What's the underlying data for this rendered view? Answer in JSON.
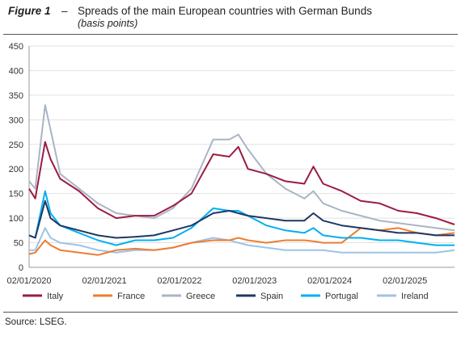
{
  "header": {
    "figure_label": "Figure 1",
    "dash": "–",
    "title": "Spreads of the main European countries with German Bunds",
    "subtitle": "(basis points)"
  },
  "source": "Source: LSEG.",
  "chart_data": {
    "type": "line",
    "title": "Spreads of the main European countries with German Bunds",
    "subtitle": "(basis points)",
    "xlabel": "",
    "ylabel": "",
    "ylim": [
      0,
      450
    ],
    "yticks": [
      0,
      50,
      100,
      150,
      200,
      250,
      300,
      350,
      400,
      450
    ],
    "xlim": [
      "02/01/2020",
      "31/08/2025"
    ],
    "xtick_labels": [
      "02/01/2020",
      "02/01/2021",
      "02/01/2022",
      "02/01/2023",
      "02/01/2024",
      "02/01/2025"
    ],
    "grid": "horizontal",
    "legend_position": "bottom",
    "x": [
      "02/01/2020",
      "01/02/2020",
      "20/03/2020",
      "15/04/2020",
      "01/06/2020",
      "01/09/2020",
      "01/12/2020",
      "01/03/2021",
      "01/06/2021",
      "01/09/2021",
      "01/12/2021",
      "01/03/2022",
      "15/06/2022",
      "01/09/2022",
      "15/10/2022",
      "01/12/2022",
      "01/03/2023",
      "01/06/2023",
      "01/09/2023",
      "15/10/2023",
      "01/12/2023",
      "01/03/2024",
      "01/06/2024",
      "01/09/2024",
      "01/12/2024",
      "01/03/2025",
      "01/06/2025",
      "31/08/2025"
    ],
    "series": [
      {
        "name": "Italy",
        "color": "#9b1c45",
        "values": [
          160,
          140,
          255,
          220,
          180,
          155,
          120,
          100,
          105,
          105,
          125,
          150,
          230,
          225,
          245,
          200,
          190,
          175,
          170,
          205,
          170,
          155,
          135,
          130,
          115,
          110,
          100,
          87
        ]
      },
      {
        "name": "France",
        "color": "#ed7d31",
        "values": [
          27,
          30,
          55,
          45,
          35,
          30,
          25,
          35,
          38,
          35,
          40,
          50,
          55,
          55,
          60,
          55,
          50,
          55,
          55,
          53,
          50,
          50,
          80,
          75,
          80,
          70,
          65,
          70
        ]
      },
      {
        "name": "Greece",
        "color": "#aab4c5",
        "values": [
          175,
          160,
          330,
          280,
          190,
          160,
          130,
          110,
          105,
          100,
          120,
          160,
          260,
          260,
          270,
          240,
          190,
          160,
          140,
          155,
          130,
          115,
          105,
          95,
          90,
          85,
          80,
          75
        ]
      },
      {
        "name": "Spain",
        "color": "#1f3864",
        "values": [
          65,
          60,
          135,
          100,
          85,
          75,
          65,
          60,
          62,
          65,
          75,
          85,
          110,
          115,
          110,
          105,
          100,
          95,
          95,
          110,
          95,
          85,
          80,
          75,
          70,
          70,
          65,
          65
        ]
      },
      {
        "name": "Portugal",
        "color": "#00b0f0",
        "values": [
          65,
          60,
          155,
          110,
          85,
          70,
          55,
          45,
          55,
          55,
          60,
          80,
          120,
          115,
          115,
          105,
          85,
          75,
          70,
          80,
          65,
          60,
          60,
          55,
          55,
          50,
          45,
          45
        ]
      },
      {
        "name": "Ireland",
        "color": "#9dc3e6",
        "values": [
          35,
          35,
          80,
          60,
          50,
          45,
          35,
          30,
          35,
          35,
          40,
          50,
          60,
          55,
          50,
          45,
          40,
          35,
          35,
          35,
          35,
          30,
          30,
          30,
          30,
          30,
          30,
          35
        ]
      }
    ]
  }
}
